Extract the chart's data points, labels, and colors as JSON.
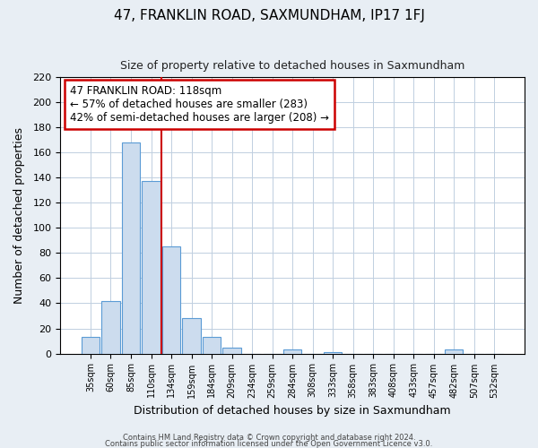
{
  "title": "47, FRANKLIN ROAD, SAXMUNDHAM, IP17 1FJ",
  "subtitle": "Size of property relative to detached houses in Saxmundham",
  "xlabel": "Distribution of detached houses by size in Saxmundham",
  "ylabel": "Number of detached properties",
  "bar_labels": [
    "35sqm",
    "60sqm",
    "85sqm",
    "110sqm",
    "134sqm",
    "159sqm",
    "184sqm",
    "209sqm",
    "234sqm",
    "259sqm",
    "284sqm",
    "308sqm",
    "333sqm",
    "358sqm",
    "383sqm",
    "408sqm",
    "433sqm",
    "457sqm",
    "482sqm",
    "507sqm",
    "532sqm"
  ],
  "bar_values": [
    13,
    42,
    168,
    137,
    85,
    28,
    13,
    5,
    0,
    0,
    3,
    0,
    1,
    0,
    0,
    0,
    0,
    0,
    3,
    0,
    0
  ],
  "bar_color": "#ccdcee",
  "bar_edge_color": "#5b9bd5",
  "ylim": [
    0,
    220
  ],
  "yticks": [
    0,
    20,
    40,
    60,
    80,
    100,
    120,
    140,
    160,
    180,
    200,
    220
  ],
  "property_line_color": "#cc0000",
  "annotation_title": "47 FRANKLIN ROAD: 118sqm",
  "annotation_line1": "← 57% of detached houses are smaller (283)",
  "annotation_line2": "42% of semi-detached houses are larger (208) →",
  "annotation_box_color": "#ffffff",
  "annotation_box_edge": "#cc0000",
  "footer1": "Contains HM Land Registry data © Crown copyright and database right 2024.",
  "footer2": "Contains public sector information licensed under the Open Government Licence v3.0.",
  "background_color": "#e8eef4",
  "plot_background": "#ffffff",
  "grid_color": "#c0cfe0"
}
